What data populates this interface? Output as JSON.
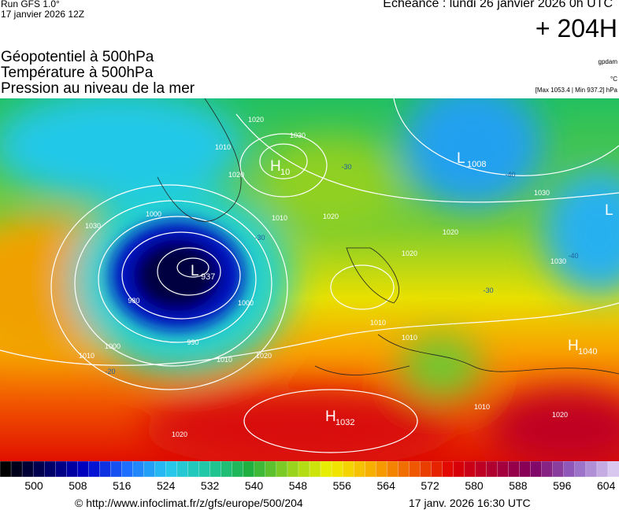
{
  "header": {
    "run": "Run GFS 1.0°",
    "date": "17 janvier 2026 12Z",
    "echeance": "Echéance : lundi 26 janvier 2026 0h UTC",
    "offset": "+ 204H",
    "layers": [
      "Géopotentiel à 500hPa",
      "Température à 500hPa",
      "Pression au niveau de la mer"
    ],
    "units": [
      "gpdam",
      "°C",
      "[Max 1053.4 | Min 937.2] hPa"
    ]
  },
  "map": {
    "centers": [
      {
        "letter": "L",
        "value": "937"
      },
      {
        "letter": "H",
        "value": "1032"
      },
      {
        "letter": "H",
        "value": "10"
      },
      {
        "letter": "L",
        "value": "1008"
      },
      {
        "letter": "H",
        "value": "1040"
      },
      {
        "letter": "L",
        "value": ""
      }
    ],
    "isobar_labels": [
      "1020",
      "1030",
      "1010",
      "1020",
      "1030",
      "1000",
      "980",
      "990",
      "1000",
      "1010",
      "1020",
      "1010",
      "1000",
      "1010",
      "1020",
      "1020",
      "1020",
      "1010",
      "1010",
      "1030",
      "1030",
      "1020",
      "1020",
      "1010"
    ],
    "temperature_labels": [
      "-30",
      "-30",
      "-40",
      "-40",
      "-20",
      "-30"
    ]
  },
  "colorbar": {
    "colors": [
      "#000000",
      "#000060",
      "#0000c8",
      "#1e6eff",
      "#28c8f0",
      "#20c8a0",
      "#20b040",
      "#90d020",
      "#f0f000",
      "#f8b000",
      "#f06000",
      "#e00000",
      "#b00030",
      "#800060",
      "#9060c0",
      "#d8c8f0"
    ],
    "labels": [
      "500",
      "508",
      "516",
      "524",
      "532",
      "540",
      "548",
      "556",
      "564",
      "572",
      "580",
      "588",
      "596",
      "604"
    ]
  },
  "footer": {
    "url": "© http://www.infoclimat.fr/z/gfs/europe/500/204",
    "updated": "17 janv. 2026 16:30 UTC"
  }
}
